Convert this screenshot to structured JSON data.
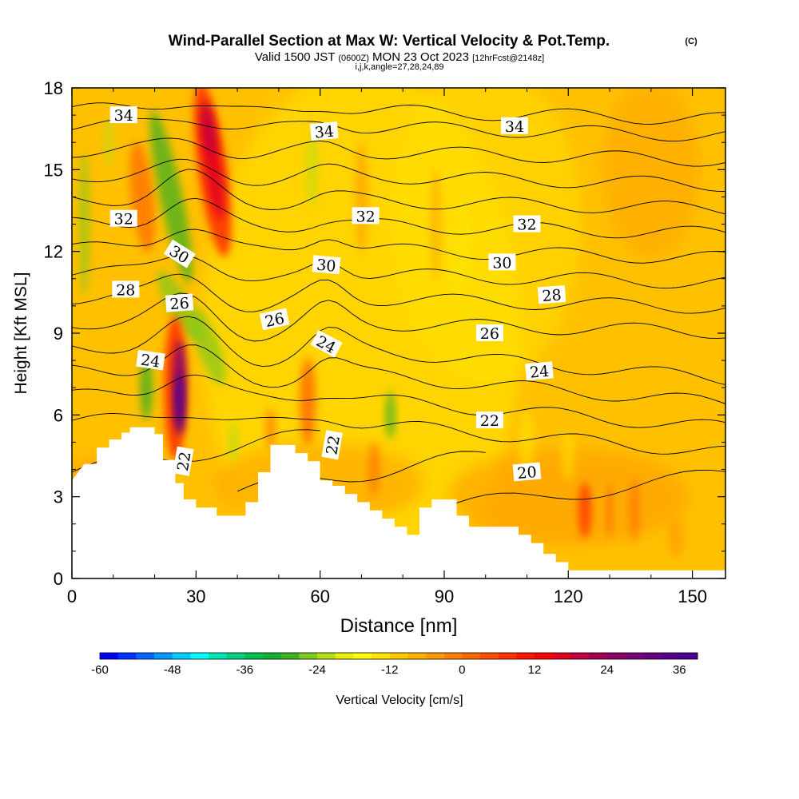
{
  "header": {
    "title": "Wind-Parallel Section at Max W: Vertical Velocity & Pot.Temp.",
    "copyright": "(C)",
    "valid_prefix": "Valid 1500 JST",
    "valid_utc": "(0600Z)",
    "valid_date": "MON 23 Oct 2023",
    "forecast_note": "[12hrFcst@2148z]",
    "indices": "i,j,k,angle=27,28,24,89"
  },
  "chart_data": {
    "type": "heatmap",
    "xlabel": "Distance [nm]",
    "ylabel": "Height [Kft MSL]",
    "xlim": [
      0,
      158
    ],
    "ylim": [
      0,
      18
    ],
    "x_ticks": [
      "0",
      "30",
      "60",
      "90",
      "120",
      "150"
    ],
    "y_ticks": [
      "0",
      "3",
      "6",
      "9",
      "12",
      "15",
      "18"
    ],
    "grid": false,
    "fill_variable": "Vertical Velocity [cm/s]",
    "contour_variable": "Potential temperature",
    "terrain_profile": [
      [
        0,
        3.6
      ],
      [
        3,
        4.2
      ],
      [
        6,
        4.2
      ],
      [
        6,
        4.8
      ],
      [
        9,
        4.8
      ],
      [
        9,
        5.1
      ],
      [
        12,
        5.1
      ],
      [
        12,
        5.35
      ],
      [
        14,
        5.35
      ],
      [
        14,
        5.55
      ],
      [
        20,
        5.55
      ],
      [
        20,
        5.3
      ],
      [
        22,
        5.3
      ],
      [
        22,
        4.35
      ],
      [
        25,
        4.35
      ],
      [
        25,
        3.5
      ],
      [
        27,
        3.5
      ],
      [
        27,
        2.9
      ],
      [
        30,
        2.9
      ],
      [
        30,
        2.6
      ],
      [
        35,
        2.6
      ],
      [
        35,
        2.3
      ],
      [
        42,
        2.3
      ],
      [
        42,
        2.8
      ],
      [
        45,
        2.8
      ],
      [
        45,
        3.9
      ],
      [
        48,
        3.9
      ],
      [
        48,
        4.9
      ],
      [
        54,
        4.9
      ],
      [
        54,
        4.6
      ],
      [
        57,
        4.6
      ],
      [
        57,
        4.3
      ],
      [
        60,
        4.3
      ],
      [
        60,
        3.6
      ],
      [
        63,
        3.6
      ],
      [
        63,
        3.4
      ],
      [
        66,
        3.4
      ],
      [
        66,
        3.1
      ],
      [
        69,
        3.1
      ],
      [
        69,
        2.8
      ],
      [
        72,
        2.8
      ],
      [
        72,
        2.5
      ],
      [
        75,
        2.5
      ],
      [
        75,
        2.2
      ],
      [
        78,
        2.2
      ],
      [
        78,
        1.9
      ],
      [
        81,
        1.9
      ],
      [
        81,
        1.6
      ],
      [
        84,
        1.6
      ],
      [
        84,
        2.6
      ],
      [
        87,
        2.6
      ],
      [
        87,
        2.9
      ],
      [
        93,
        2.9
      ],
      [
        93,
        2.3
      ],
      [
        96,
        2.3
      ],
      [
        96,
        1.9
      ],
      [
        108,
        1.9
      ],
      [
        108,
        1.6
      ],
      [
        111,
        1.6
      ],
      [
        111,
        1.3
      ],
      [
        114,
        1.3
      ],
      [
        114,
        0.9
      ],
      [
        117,
        0.9
      ],
      [
        117,
        0.6
      ],
      [
        120,
        0.6
      ],
      [
        120,
        0.3
      ],
      [
        158,
        0.3
      ]
    ],
    "contour_labels": [
      {
        "text": "34",
        "x": 12.5,
        "y": 17.0,
        "angle": 0
      },
      {
        "text": "34",
        "x": 61.0,
        "y": 16.4,
        "angle": -5
      },
      {
        "text": "34",
        "x": 107.0,
        "y": 16.6,
        "angle": 0
      },
      {
        "text": "32",
        "x": 12.5,
        "y": 13.2,
        "angle": 0
      },
      {
        "text": "32",
        "x": 71.0,
        "y": 13.3,
        "angle": 0
      },
      {
        "text": "32",
        "x": 110.0,
        "y": 13.0,
        "angle": 0
      },
      {
        "text": "30",
        "x": 26.0,
        "y": 11.9,
        "angle": 32
      },
      {
        "text": "30",
        "x": 61.5,
        "y": 11.5,
        "angle": 5
      },
      {
        "text": "30",
        "x": 104.0,
        "y": 11.6,
        "angle": 0
      },
      {
        "text": "28",
        "x": 13.0,
        "y": 10.6,
        "angle": 0
      },
      {
        "text": "28",
        "x": 116.0,
        "y": 10.4,
        "angle": -4
      },
      {
        "text": "26",
        "x": 26.0,
        "y": 10.1,
        "angle": -4
      },
      {
        "text": "26",
        "x": 49.0,
        "y": 9.5,
        "angle": -12
      },
      {
        "text": "26",
        "x": 101.0,
        "y": 9.0,
        "angle": 0
      },
      {
        "text": "24",
        "x": 19.0,
        "y": 8.0,
        "angle": 8
      },
      {
        "text": "24",
        "x": 61.5,
        "y": 8.6,
        "angle": 28
      },
      {
        "text": "24",
        "x": 113.0,
        "y": 7.6,
        "angle": -5
      },
      {
        "text": "22",
        "x": 27.0,
        "y": 4.3,
        "angle": -80
      },
      {
        "text": "22",
        "x": 63.0,
        "y": 4.9,
        "angle": -80
      },
      {
        "text": "22",
        "x": 101.0,
        "y": 5.8,
        "angle": 0
      },
      {
        "text": "20",
        "x": 110.0,
        "y": 3.9,
        "angle": -5
      }
    ],
    "colorbar": {
      "label": "Vertical Velocity [cm/s]",
      "min": -60,
      "max": 39,
      "step": 3,
      "tick_labels": [
        "-60",
        "-48",
        "-36",
        "-24",
        "-12",
        "0",
        "12",
        "24",
        "36"
      ],
      "colors": [
        "#0000ff",
        "#0033ff",
        "#0066ff",
        "#0099ff",
        "#00ccff",
        "#00ffff",
        "#00e6b3",
        "#00d080",
        "#00c050",
        "#10b030",
        "#40b020",
        "#7fc81e",
        "#b5de18",
        "#e8f000",
        "#ffff00",
        "#ffe600",
        "#ffcc00",
        "#ffb300",
        "#ff9900",
        "#ff8000",
        "#ff6600",
        "#ff4d00",
        "#ff3300",
        "#ff1500",
        "#ff0000",
        "#e00020",
        "#c00040",
        "#a00050",
        "#8c0064",
        "#780078",
        "#660080",
        "#550088",
        "#4a0090"
      ]
    }
  }
}
